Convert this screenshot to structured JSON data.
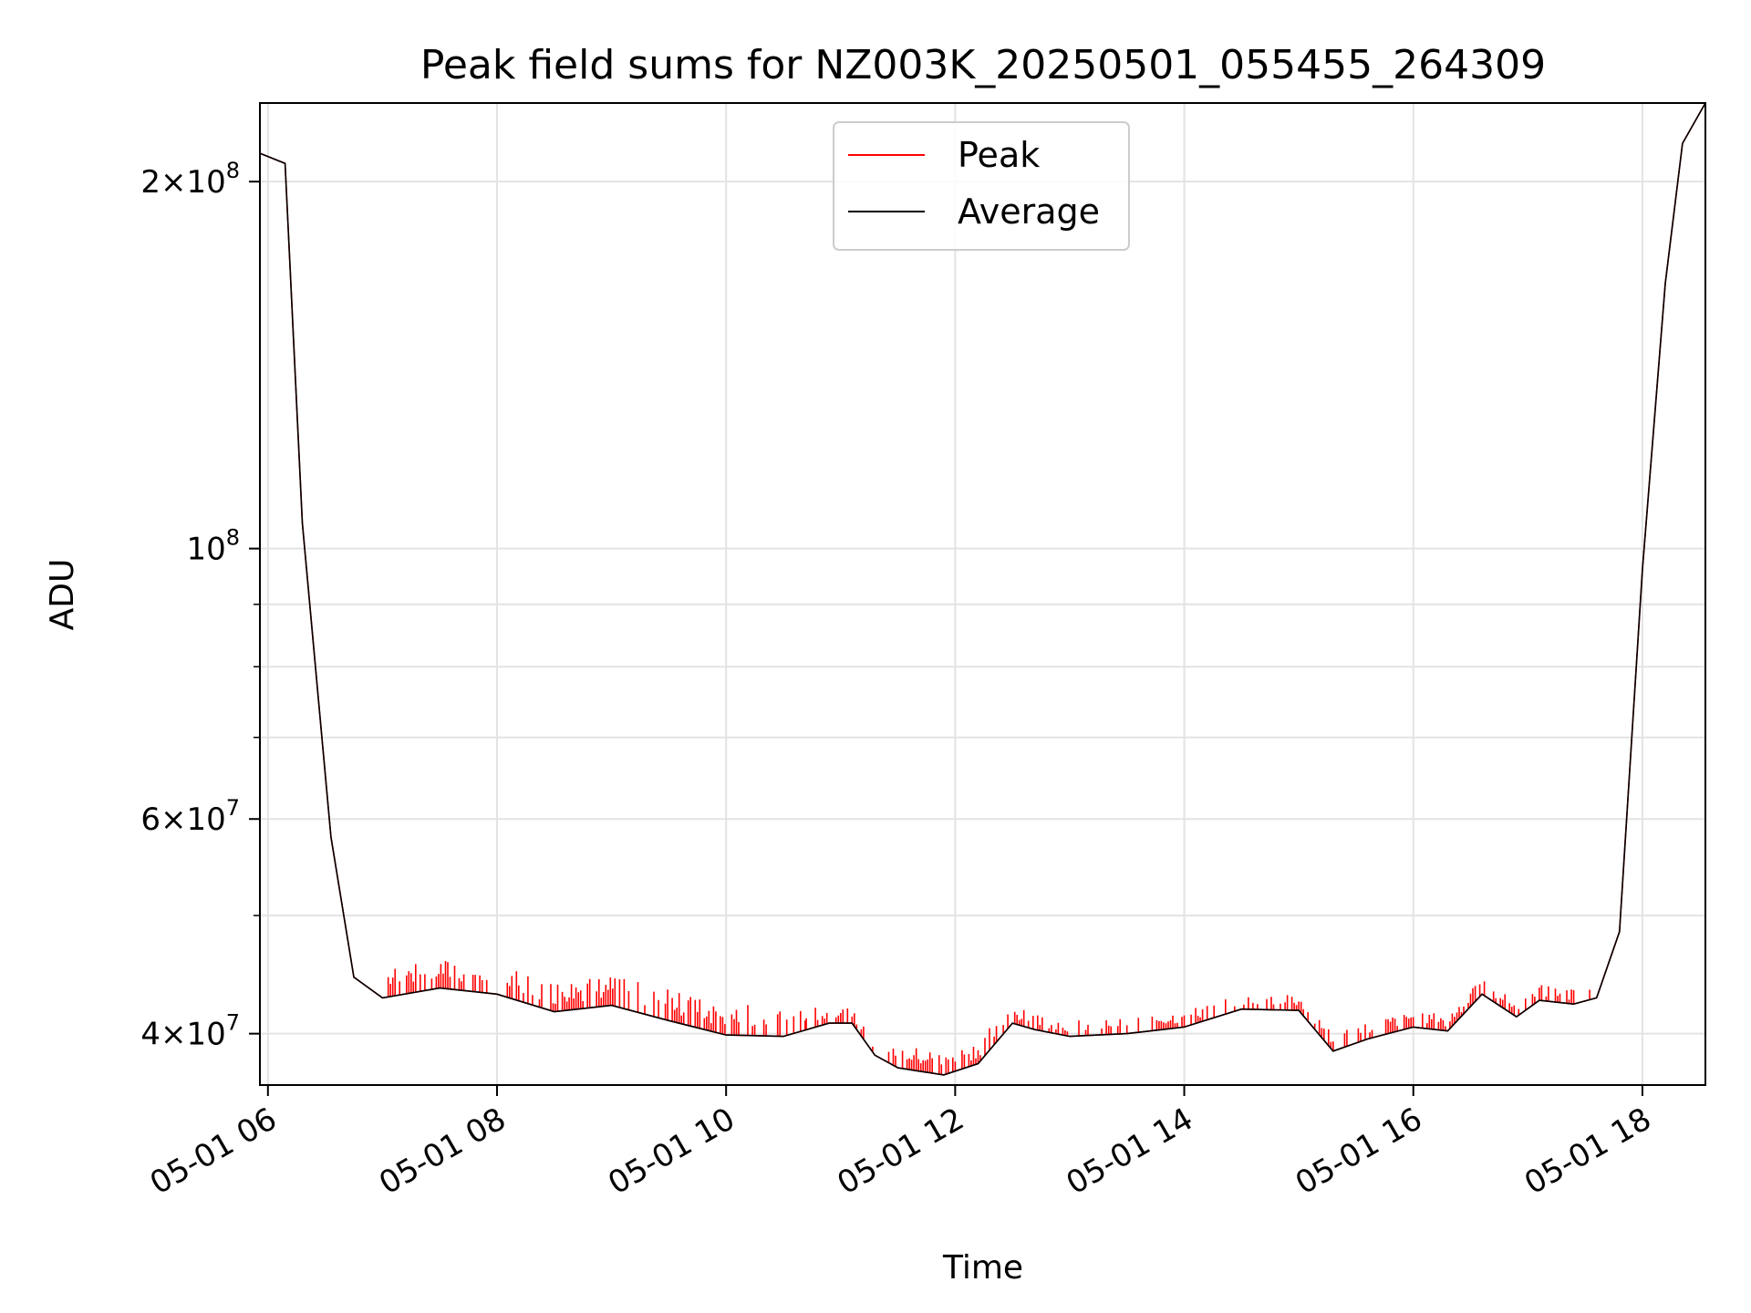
{
  "chart_data": {
    "type": "line",
    "title": "Peak field sums for NZ003K_20250501_055455_264309",
    "xlabel": "Time",
    "ylabel": "ADU",
    "x_unit": "hours of day 2025-05-01",
    "xlim": [
      5.93,
      18.55
    ],
    "ylim": [
      36300000,
      232000000
    ],
    "yscale": "log",
    "grid": true,
    "legend_position": "top-center",
    "x_ticks": [
      {
        "value": 6,
        "label": "05-01 06"
      },
      {
        "value": 8,
        "label": "05-01 08"
      },
      {
        "value": 10,
        "label": "05-01 10"
      },
      {
        "value": 12,
        "label": "05-01 12"
      },
      {
        "value": 14,
        "label": "05-01 14"
      },
      {
        "value": 16,
        "label": "05-01 16"
      },
      {
        "value": 18,
        "label": "05-01 18"
      }
    ],
    "y_ticks": [
      {
        "value": 40000000,
        "mantissa": "4",
        "exp": "7"
      },
      {
        "value": 60000000,
        "mantissa": "6",
        "exp": "7"
      },
      {
        "value": 100000000,
        "mantissa": "",
        "exp": "8"
      },
      {
        "value": 200000000,
        "mantissa": "2",
        "exp": "8"
      }
    ],
    "y_minor_ticks": [
      50000000,
      70000000,
      80000000,
      90000000
    ],
    "series": [
      {
        "name": "Peak",
        "color": "#ff0000",
        "spike_ranges": [
          [
            7.05,
            10.7,
            1900000.0
          ],
          [
            10.7,
            12.3,
            1300000.0
          ],
          [
            12.3,
            17.55,
            1000000.0
          ]
        ],
        "x": [
          5.93,
          6.15,
          6.3,
          6.55,
          6.75,
          7.0,
          7.5,
          8.0,
          8.5,
          9.0,
          9.5,
          10.0,
          10.5,
          10.9,
          11.1,
          11.3,
          11.5,
          11.9,
          12.2,
          12.5,
          12.7,
          13.0,
          13.5,
          14.0,
          14.5,
          15.0,
          15.3,
          15.6,
          16.0,
          16.3,
          16.6,
          16.9,
          17.1,
          17.4,
          17.6,
          17.8,
          18.0,
          18.2,
          18.35,
          18.55
        ],
        "y": [
          211000000,
          207000000,
          105000000,
          58000000,
          44500000,
          42800000,
          43600000,
          43100000,
          41700000,
          42200000,
          41000000,
          39900000,
          39800000,
          40800000,
          40800000,
          38400000,
          37500000,
          37000000,
          37800000,
          40800000,
          40300000,
          39800000,
          40000000,
          40500000,
          41900000,
          41800000,
          38700000,
          39600000,
          40500000,
          40200000,
          43100000,
          41300000,
          42600000,
          42300000,
          42800000,
          48500000,
          96000000,
          165000000,
          215000000,
          232000000
        ]
      },
      {
        "name": "Average",
        "color": "#000000",
        "x": [
          5.93,
          6.15,
          6.3,
          6.55,
          6.75,
          7.0,
          7.5,
          8.0,
          8.5,
          9.0,
          9.5,
          10.0,
          10.5,
          10.9,
          11.1,
          11.3,
          11.5,
          11.9,
          12.2,
          12.5,
          12.7,
          13.0,
          13.5,
          14.0,
          14.5,
          15.0,
          15.3,
          15.6,
          16.0,
          16.3,
          16.6,
          16.9,
          17.1,
          17.4,
          17.6,
          17.8,
          18.0,
          18.2,
          18.35,
          18.55
        ],
        "y": [
          211000000,
          207000000,
          105000000,
          58000000,
          44500000,
          42800000,
          43600000,
          43100000,
          41700000,
          42200000,
          41000000,
          39900000,
          39800000,
          40800000,
          40800000,
          38400000,
          37500000,
          37000000,
          37800000,
          40800000,
          40300000,
          39800000,
          40000000,
          40500000,
          41900000,
          41800000,
          38700000,
          39600000,
          40500000,
          40200000,
          43100000,
          41300000,
          42600000,
          42300000,
          42800000,
          48500000,
          96000000,
          165000000,
          215000000,
          232000000
        ]
      }
    ]
  }
}
